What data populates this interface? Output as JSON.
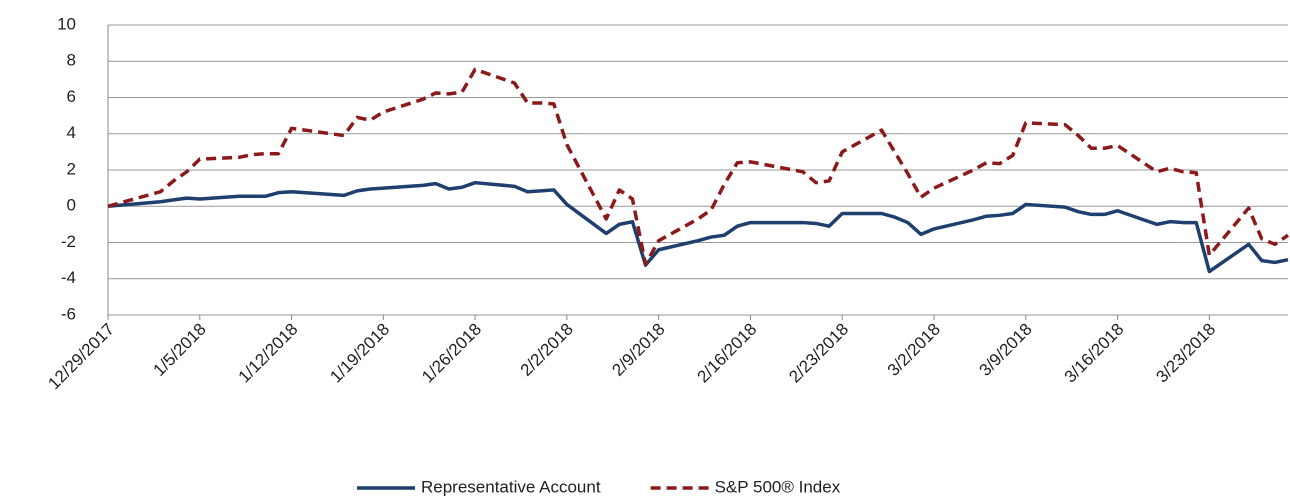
{
  "chart_data": {
    "type": "line",
    "x": [
      "12/29/2017",
      "1/2/2018",
      "1/3/2018",
      "1/4/2018",
      "1/5/2018",
      "1/8/2018",
      "1/9/2018",
      "1/10/2018",
      "1/11/2018",
      "1/12/2018",
      "1/16/2018",
      "1/17/2018",
      "1/18/2018",
      "1/19/2018",
      "1/22/2018",
      "1/23/2018",
      "1/24/2018",
      "1/25/2018",
      "1/26/2018",
      "1/29/2018",
      "1/30/2018",
      "1/31/2018",
      "2/1/2018",
      "2/2/2018",
      "2/5/2018",
      "2/6/2018",
      "2/7/2018",
      "2/8/2018",
      "2/9/2018",
      "2/12/2018",
      "2/13/2018",
      "2/14/2018",
      "2/15/2018",
      "2/16/2018",
      "2/20/2018",
      "2/21/2018",
      "2/22/2018",
      "2/23/2018",
      "2/26/2018",
      "2/27/2018",
      "2/28/2018",
      "3/1/2018",
      "3/2/2018",
      "3/5/2018",
      "3/6/2018",
      "3/7/2018",
      "3/8/2018",
      "3/9/2018",
      "3/12/2018",
      "3/13/2018",
      "3/14/2018",
      "3/15/2018",
      "3/16/2018",
      "3/19/2018",
      "3/20/2018",
      "3/21/2018",
      "3/22/2018",
      "3/23/2018",
      "3/26/2018",
      "3/27/2018",
      "3/28/2018",
      "3/29/2018"
    ],
    "series": [
      {
        "name": "Representative Account",
        "color": "#1f3f6e",
        "dash": false,
        "values": [
          0,
          0.25,
          0.35,
          0.45,
          0.4,
          0.55,
          0.55,
          0.55,
          0.75,
          0.8,
          0.6,
          0.85,
          0.95,
          1.0,
          1.15,
          1.25,
          0.95,
          1.05,
          1.3,
          1.1,
          0.8,
          0.85,
          0.9,
          0.1,
          -1.5,
          -1.0,
          -0.85,
          -3.25,
          -2.4,
          -1.9,
          -1.7,
          -1.6,
          -1.1,
          -0.9,
          -0.9,
          -0.95,
          -1.1,
          -0.4,
          -0.4,
          -0.6,
          -0.9,
          -1.55,
          -1.25,
          -0.75,
          -0.55,
          -0.5,
          -0.4,
          0.1,
          -0.05,
          -0.3,
          -0.45,
          -0.45,
          -0.25,
          -1.0,
          -0.85,
          -0.9,
          -0.9,
          -3.6,
          -2.1,
          -3.0,
          -3.1,
          -2.95
        ]
      },
      {
        "name": "S&P 500® Index",
        "color": "#8b1a1a",
        "dash": true,
        "values": [
          0,
          0.8,
          1.4,
          1.9,
          2.6,
          2.7,
          2.85,
          2.9,
          2.9,
          4.3,
          3.9,
          4.9,
          4.75,
          5.2,
          5.9,
          6.25,
          6.2,
          6.3,
          7.55,
          6.8,
          5.7,
          5.7,
          5.65,
          3.4,
          -0.7,
          0.9,
          0.4,
          -3.2,
          -1.9,
          -0.7,
          -0.2,
          1.2,
          2.4,
          2.45,
          1.9,
          1.3,
          1.4,
          3.0,
          4.2,
          3.0,
          1.8,
          0.5,
          1.0,
          2.0,
          2.4,
          2.35,
          2.8,
          4.6,
          4.5,
          3.9,
          3.2,
          3.2,
          3.35,
          1.9,
          2.1,
          1.9,
          1.85,
          -2.7,
          -0.1,
          -1.8,
          -2.1,
          -1.6
        ]
      }
    ],
    "xlim": [
      "12/29/2017",
      "3/29/2018"
    ],
    "xticks": [
      "12/29/2017",
      "1/5/2018",
      "1/12/2018",
      "1/19/2018",
      "1/26/2018",
      "2/2/2018",
      "2/9/2018",
      "2/16/2018",
      "2/23/2018",
      "3/2/2018",
      "3/9/2018",
      "3/16/2018",
      "3/23/2018"
    ],
    "ylim": [
      -6,
      10
    ],
    "yticks": [
      -6,
      -4,
      -2,
      0,
      2,
      4,
      6,
      8,
      10
    ],
    "grid": true,
    "legend": "bottom"
  }
}
